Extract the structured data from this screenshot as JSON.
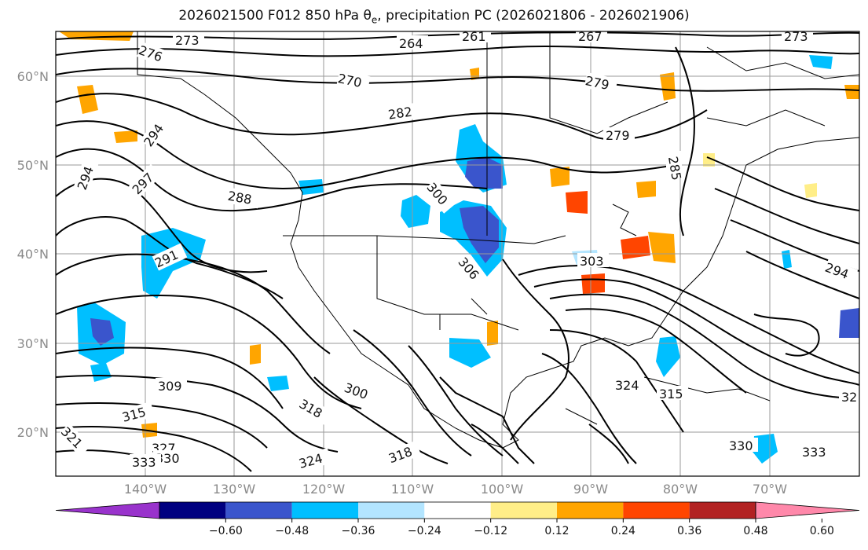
{
  "title": "2026021500 F012 850 hPa θ",
  "title_sub": "e",
  "title_rest": ", precipitation PC (2026021806 - 2026021906)",
  "lat_ticks": [
    "60°N",
    "50°N",
    "40°N",
    "30°N",
    "20°N"
  ],
  "lon_ticks": [
    "140°W",
    "130°W",
    "120°W",
    "110°W",
    "100°W",
    "90°W",
    "80°W",
    "70°W"
  ],
  "colorbar": {
    "labels": [
      "−0.60",
      "−0.48",
      "−0.36",
      "−0.24",
      "−0.12",
      "0.12",
      "0.24",
      "0.36",
      "0.48",
      "0.60"
    ],
    "colors": [
      "#9933cc",
      "#000080",
      "#3a55cc",
      "#00bfff",
      "#b3e5ff",
      "#ffffff",
      "#ffee88",
      "#ffa500",
      "#ff4500",
      "#b22222",
      "#ff88aa"
    ]
  },
  "contour_labels": [
    {
      "text": "273"
    },
    {
      "text": "276"
    },
    {
      "text": "264"
    },
    {
      "text": "261"
    },
    {
      "text": "267"
    },
    {
      "text": "273"
    },
    {
      "text": "270"
    },
    {
      "text": "279"
    },
    {
      "text": "282"
    },
    {
      "text": "294"
    },
    {
      "text": "294"
    },
    {
      "text": "297"
    },
    {
      "text": "288"
    },
    {
      "text": "279"
    },
    {
      "text": "285"
    },
    {
      "text": "300"
    },
    {
      "text": "291"
    },
    {
      "text": "306"
    },
    {
      "text": "303"
    },
    {
      "text": "294"
    },
    {
      "text": "309"
    },
    {
      "text": "300"
    },
    {
      "text": "318"
    },
    {
      "text": "315"
    },
    {
      "text": "321"
    },
    {
      "text": "324"
    },
    {
      "text": "327"
    },
    {
      "text": "330"
    },
    {
      "text": "333"
    },
    {
      "text": "318"
    },
    {
      "text": "315"
    },
    {
      "text": "324"
    },
    {
      "text": "330"
    },
    {
      "text": "333"
    },
    {
      "text": "32"
    }
  ],
  "map_data": {
    "lat_range": [
      15,
      65
    ],
    "lon_range": [
      -150,
      -60
    ]
  }
}
